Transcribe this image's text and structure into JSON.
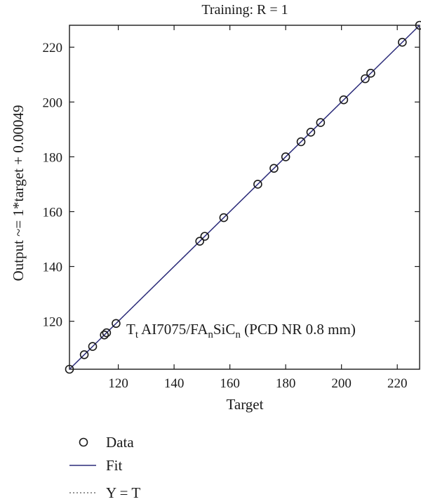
{
  "chart_data": {
    "type": "scatter",
    "title": "Training: R = 1",
    "xlabel": "Target",
    "ylabel": "Output ~= 1*target + 0.00049",
    "xlim": [
      102.5,
      228
    ],
    "ylim": [
      102.5,
      228
    ],
    "x_ticks": [
      120,
      140,
      160,
      180,
      200,
      220
    ],
    "y_ticks": [
      120,
      140,
      160,
      180,
      200,
      220
    ],
    "grid": false,
    "annotation": {
      "parts": [
        {
          "text": "T",
          "sub": false
        },
        {
          "text": "t",
          "sub": true
        },
        {
          "text": " AI7075/FA",
          "sub": false
        },
        {
          "text": "n",
          "sub": true
        },
        {
          "text": "SiC",
          "sub": false
        },
        {
          "text": "n",
          "sub": true
        },
        {
          "text": " (PCD NR 0.8 mm)",
          "sub": false
        }
      ]
    },
    "series": [
      {
        "name": "Data",
        "kind": "marker-circle",
        "x": [
          102.5,
          107.8,
          110.8,
          115.0,
          115.8,
          119.2,
          149.2,
          151.0,
          157.8,
          170.0,
          175.8,
          180.0,
          185.5,
          189.0,
          192.5,
          200.8,
          208.5,
          210.5,
          221.8,
          228.0
        ],
        "y": [
          102.5,
          107.8,
          110.8,
          115.0,
          115.8,
          119.2,
          149.2,
          151.0,
          157.8,
          170.0,
          175.8,
          180.0,
          185.5,
          189.0,
          192.5,
          200.8,
          208.5,
          210.5,
          221.8,
          228.0
        ]
      },
      {
        "name": "Fit",
        "kind": "line-solid",
        "slope": 1,
        "intercept": 0.00049
      },
      {
        "name": "Y = T",
        "kind": "line-dotted",
        "slope": 1,
        "intercept": 0
      }
    ],
    "legend": {
      "position": "bottom-left",
      "entries": [
        "Data",
        "Fit",
        "Y = T"
      ]
    },
    "colors": {
      "fit_line": "#2b2b7a",
      "marker_stroke": "#1a1a1a",
      "axis": "#1a1a1a",
      "dotted_line": "#555555"
    }
  }
}
